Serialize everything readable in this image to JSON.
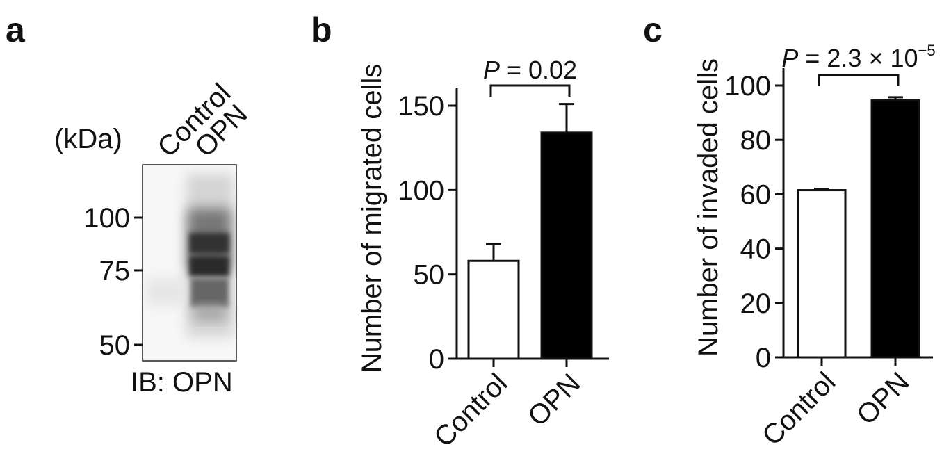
{
  "panels": {
    "a": {
      "letter": "a"
    },
    "b": {
      "letter": "b"
    },
    "c": {
      "letter": "c"
    }
  },
  "blot": {
    "unit_label": "(kDa)",
    "lanes": [
      "Control",
      "OPN"
    ],
    "markers": [
      {
        "label": "100",
        "kda": 100
      },
      {
        "label": "75",
        "kda": 75
      },
      {
        "label": "50",
        "kda": 50
      }
    ],
    "caption": "IB: OPN"
  },
  "chart_data": [
    {
      "type": "bar",
      "panel": "b",
      "categories": [
        "Control",
        "OPN"
      ],
      "values": [
        58,
        134
      ],
      "errors": [
        10,
        17
      ],
      "bar_colors": [
        "#ffffff",
        "#000000"
      ],
      "ylabel": "Number of migrated cells",
      "ylim": [
        0,
        150
      ],
      "yticks": [
        0,
        50,
        100,
        150
      ],
      "annotation": {
        "p_prefix": "P",
        "p_rest": " = 0.02",
        "p_sup": ""
      }
    },
    {
      "type": "bar",
      "panel": "c",
      "categories": [
        "Control",
        "OPN"
      ],
      "values": [
        61.5,
        94.5
      ],
      "errors": [
        0.5,
        1.2
      ],
      "bar_colors": [
        "#ffffff",
        "#000000"
      ],
      "ylabel": "Number of invaded cells",
      "ylim": [
        0,
        100
      ],
      "yticks": [
        0,
        20,
        40,
        60,
        80,
        100
      ],
      "annotation": {
        "p_prefix": "P",
        "p_rest": " = 2.3 × 10",
        "p_sup": "−5"
      }
    }
  ]
}
